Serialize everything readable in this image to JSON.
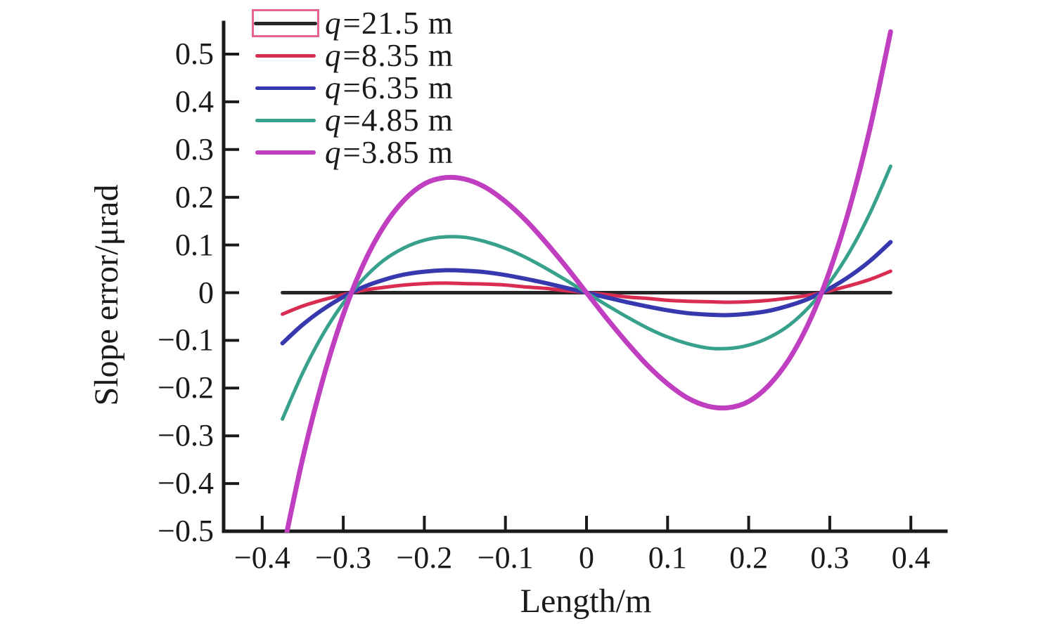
{
  "figure": {
    "background": "#ffffff",
    "text_color": "#1a1a1a"
  },
  "chart_data": {
    "type": "line",
    "title": "",
    "xlabel": "Length/m",
    "ylabel": "Slope error/μrad",
    "xlim": [
      -0.448,
      0.443
    ],
    "ylim": [
      -0.5,
      0.5
    ],
    "grid": false,
    "legend_position": "top-left",
    "legend_box_color": "#e5638d",
    "axis_color": "#1a1a1a",
    "x_ticks": [
      -0.4,
      -0.3,
      -0.2,
      -0.1,
      0,
      0.1,
      0.2,
      0.3,
      0.4
    ],
    "x_tick_labels": [
      "−0.4",
      "−0.3",
      "−0.2",
      "−0.1",
      "0",
      "0.1",
      "0.2",
      "0.3",
      "0.4"
    ],
    "y_ticks": [
      0.5,
      0.4,
      0.3,
      0.2,
      0.1,
      0,
      -0.1,
      -0.2,
      -0.3,
      -0.4,
      -0.5
    ],
    "y_tick_labels": [
      "0.5",
      "0.4",
      "0.3",
      "0.2",
      "0.1",
      "0",
      "−0.1",
      "−0.2",
      "−0.3",
      "−0.4",
      "−0.5"
    ],
    "x": [
      -0.375,
      -0.35,
      -0.325,
      -0.3,
      -0.275,
      -0.25,
      -0.225,
      -0.2,
      -0.175,
      -0.15,
      -0.125,
      -0.1,
      -0.075,
      -0.05,
      -0.025,
      0,
      0.025,
      0.05,
      0.075,
      0.1,
      0.125,
      0.15,
      0.175,
      0.2,
      0.225,
      0.25,
      0.275,
      0.3,
      0.325,
      0.35,
      0.375
    ],
    "series": [
      {
        "name": "q=21.5 m",
        "label_var": "q",
        "label_rest": "=21.5 m",
        "color": "#262626",
        "line_width": 5,
        "boxed_in_legend": true,
        "values": [
          0,
          0,
          0,
          0,
          0,
          0,
          0,
          0,
          0,
          0,
          0,
          0,
          0,
          0,
          0,
          0,
          0,
          0,
          0,
          0,
          0,
          0,
          0,
          0,
          0,
          0,
          0,
          0,
          0,
          0,
          0
        ]
      },
      {
        "name": "q=8.35 m",
        "label_var": "q",
        "label_rest": "=8.35 m",
        "color": "#d82c52",
        "line_width": 5,
        "boxed_in_legend": false,
        "values": [
          -0.045,
          -0.028,
          -0.015,
          -0.004,
          0.005,
          0.011,
          0.016,
          0.019,
          0.02,
          0.019,
          0.018,
          0.016,
          0.012,
          0.009,
          0.004,
          0,
          -0.004,
          -0.009,
          -0.012,
          -0.016,
          -0.018,
          -0.019,
          -0.02,
          -0.019,
          -0.016,
          -0.011,
          -0.005,
          0.004,
          0.015,
          0.028,
          0.045
        ]
      },
      {
        "name": "q=6.35 m",
        "label_var": "q",
        "label_rest": "=6.35 m",
        "color": "#3838ae",
        "line_width": 6,
        "boxed_in_legend": false,
        "values": [
          -0.106,
          -0.067,
          -0.035,
          -0.009,
          0.012,
          0.027,
          0.038,
          0.044,
          0.047,
          0.046,
          0.043,
          0.037,
          0.029,
          0.02,
          0.01,
          0,
          -0.01,
          -0.02,
          -0.029,
          -0.037,
          -0.043,
          -0.046,
          -0.047,
          -0.044,
          -0.038,
          -0.027,
          -0.012,
          0.009,
          0.035,
          0.067,
          0.106
        ]
      },
      {
        "name": "q=4.85 m",
        "label_var": "q",
        "label_rest": "=4.85 m",
        "color": "#38a18c",
        "line_width": 5,
        "boxed_in_legend": false,
        "values": [
          -0.265,
          -0.168,
          -0.087,
          -0.022,
          0.029,
          0.068,
          0.094,
          0.11,
          0.117,
          0.116,
          0.107,
          0.093,
          0.074,
          0.051,
          0.026,
          0,
          -0.026,
          -0.051,
          -0.074,
          -0.093,
          -0.107,
          -0.116,
          -0.117,
          -0.11,
          -0.094,
          -0.068,
          -0.029,
          0.022,
          0.087,
          0.168,
          0.265
        ]
      },
      {
        "name": "q=3.85 m",
        "label_var": "q",
        "label_rest": "=3.85 m",
        "color": "#c03ec0",
        "line_width": 7,
        "boxed_in_legend": false,
        "values": [
          -0.547,
          -0.347,
          -0.181,
          -0.046,
          0.06,
          0.139,
          0.194,
          0.228,
          0.241,
          0.238,
          0.221,
          0.191,
          0.152,
          0.105,
          0.054,
          0,
          -0.054,
          -0.105,
          -0.152,
          -0.191,
          -0.221,
          -0.238,
          -0.241,
          -0.228,
          -0.194,
          -0.139,
          -0.06,
          0.046,
          0.181,
          0.347,
          0.547
        ]
      }
    ]
  }
}
